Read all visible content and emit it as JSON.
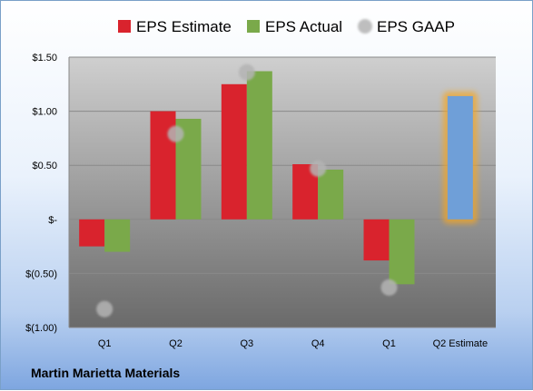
{
  "chart_data": {
    "type": "bar",
    "categories": [
      "Q1",
      "Q2",
      "Q3",
      "Q4",
      "Q1",
      "Q2 Estimate"
    ],
    "series": [
      {
        "name": "EPS Estimate",
        "color": "#d9232d",
        "values": [
          -0.25,
          1.0,
          1.25,
          0.51,
          -0.38,
          null
        ]
      },
      {
        "name": "EPS Actual",
        "color": "#7aa94a",
        "values": [
          -0.3,
          0.93,
          1.37,
          0.46,
          -0.6,
          null
        ]
      },
      {
        "name": "EPS GAAP",
        "color": "#b4b4b4",
        "kind": "point",
        "values": [
          -0.83,
          0.79,
          1.36,
          0.47,
          -0.63,
          null
        ]
      }
    ],
    "highlight": {
      "category": "Q2 Estimate",
      "value": 1.14,
      "color": "#6f9fd8",
      "glow": "#f5a623"
    },
    "ylim": [
      -1.0,
      1.5
    ],
    "yticks": [
      {
        "value": 1.5,
        "label": "$1.50"
      },
      {
        "value": 1.0,
        "label": "$1.00"
      },
      {
        "value": 0.5,
        "label": "$0.50"
      },
      {
        "value": 0,
        "label": "$-"
      },
      {
        "value": -0.5,
        "label": "$(0.50)"
      },
      {
        "value": -1.0,
        "label": "$(1.00)"
      }
    ],
    "grid": true,
    "legend_position": "top"
  },
  "company": "Martin Marietta Materials"
}
